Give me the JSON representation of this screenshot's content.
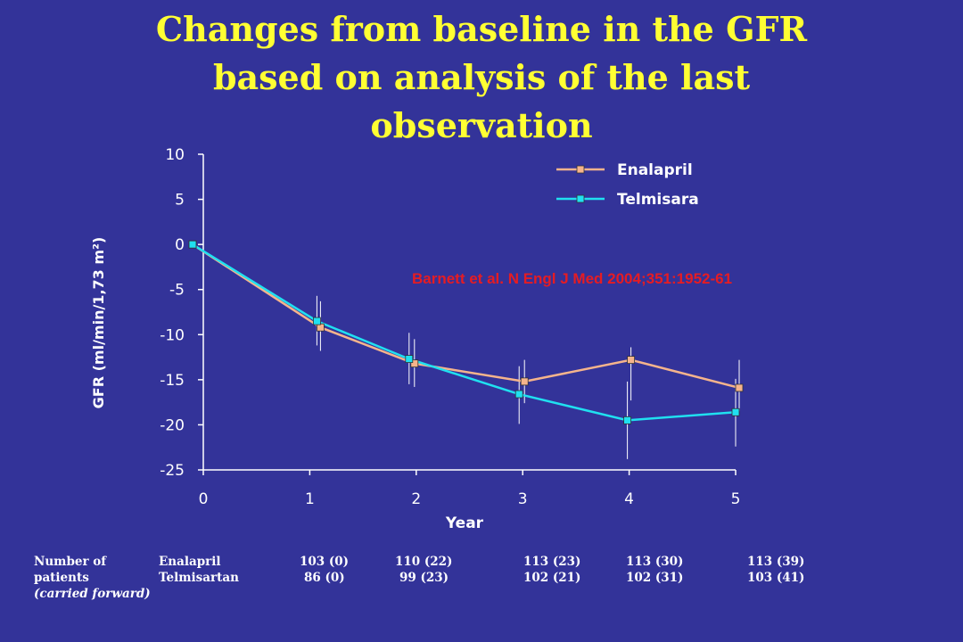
{
  "slide": {
    "title_lines": [
      "Changes from baseline in the GFR",
      "based on analysis of the last",
      "observation"
    ],
    "citation": "Barnett et al. N Engl J Med 2004;351:1952-61",
    "colors": {
      "background": "#333399",
      "title": "#ffff33",
      "citation": "#e51c23",
      "axis": "#ffffff"
    }
  },
  "chart_data": {
    "type": "line",
    "xlabel": "Year",
    "ylabel": "GFR (ml/min/1,73 m²)",
    "x": [
      0,
      1,
      2,
      3,
      4,
      5
    ],
    "ylim": [
      -25,
      10
    ],
    "yticks": [
      10,
      5,
      0,
      -5,
      -10,
      -15,
      -20,
      -25
    ],
    "grid": false,
    "legend": "top-right",
    "series": [
      {
        "name": "Enalapril",
        "color": "#f5b48c",
        "marker_color": "#f5b48c",
        "values": [
          0,
          -9.2,
          -13.2,
          -15.2,
          -12.8,
          -15.9
        ],
        "err_low": [
          0,
          -11.8,
          -15.8,
          -17.6,
          -17.3,
          -18.5
        ],
        "err_high": [
          0,
          -6.3,
          -10.5,
          -12.8,
          -11.4,
          -12.8
        ]
      },
      {
        "name": "Telmisara",
        "color": "#20e0f0",
        "marker_color": "#20e0f0",
        "values": [
          0,
          -8.5,
          -12.7,
          -16.6,
          -19.5,
          -18.6
        ],
        "err_low": [
          0,
          -11.2,
          -15.5,
          -19.9,
          -23.8,
          -22.4
        ],
        "err_high": [
          0,
          -5.7,
          -9.8,
          -13.5,
          -15.2,
          -14.9
        ]
      }
    ]
  },
  "patients_table": {
    "label_lines": [
      "Number of",
      "patients",
      "(carried forward)"
    ],
    "rows": [
      {
        "name": "Enalapril",
        "values": [
          "103 (0)",
          "110 (22)",
          "113 (23)",
          "113 (30)",
          "113 (39)"
        ]
      },
      {
        "name": "Telmisartan",
        "values": [
          "86 (0)",
          "99 (23)",
          "102 (21)",
          "102 (31)",
          "103 (41)"
        ]
      }
    ]
  }
}
